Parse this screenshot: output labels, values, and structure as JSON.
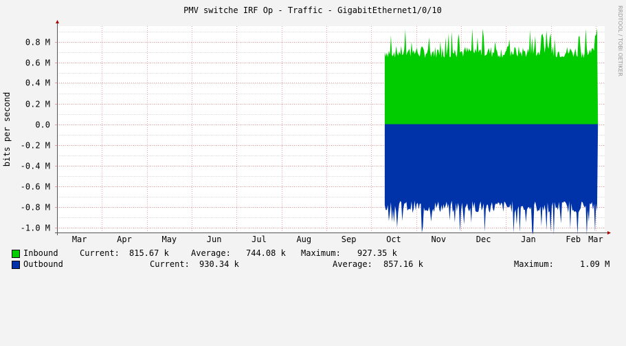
{
  "chart_data": {
    "type": "area",
    "title": "PMV switche IRF Op - Traffic - GigabitEthernet1/0/10",
    "ylabel": "bits per second",
    "watermark": "RRDTOOL / TOBI OETIKER",
    "ylim": [
      -1.05,
      0.95
    ],
    "y_ticks": [
      0.8,
      0.6,
      0.4,
      0.2,
      0.0,
      -0.2,
      -0.4,
      -0.6,
      -0.8,
      -1.0
    ],
    "y_tick_labels": [
      "0.8 M",
      "0.6 M",
      "0.4 M",
      "0.2 M",
      "0.0",
      "-0.2 M",
      "-0.4 M",
      "-0.6 M",
      "-0.8 M",
      "-1.0 M"
    ],
    "x_tick_labels": [
      "Mar",
      "Apr",
      "May",
      "Jun",
      "Jul",
      "Aug",
      "Sep",
      "Oct",
      "Nov",
      "Dec",
      "Jan",
      "Feb",
      "Mar"
    ],
    "x_range_months": [
      0,
      12.2
    ],
    "x_month_labels_at": [
      0.5,
      1.5,
      2.5,
      3.5,
      4.5,
      5.5,
      6.5,
      7.5,
      8.5,
      9.5,
      10.5,
      11.5,
      12.0
    ],
    "grid": true,
    "series": [
      {
        "name": "Inbound",
        "color": "#00cc00",
        "data_start_month": 7.3,
        "data_end_month": 12.05,
        "typical_value_M": 0.7,
        "peak_value_M": 0.93
      },
      {
        "name": "Outbound",
        "color": "#0033aa",
        "data_start_month": 7.3,
        "data_end_month": 12.05,
        "typical_value_M": -0.8,
        "peak_value_M": -1.09
      }
    ]
  },
  "legend": [
    {
      "name": "Inbound",
      "color": "#00cc00",
      "current_label": "Current:",
      "current": "815.67 k",
      "average_label": "Average:",
      "average": "744.08 k",
      "maximum_label": "Maximum:",
      "maximum": "927.35 k"
    },
    {
      "name": "Outbound",
      "color": "#0033aa",
      "current_label": "Current:",
      "current": "930.34 k",
      "average_label": "Average:",
      "average": "857.16 k",
      "maximum_label": "Maximum:",
      "maximum": "1.09 M"
    }
  ]
}
